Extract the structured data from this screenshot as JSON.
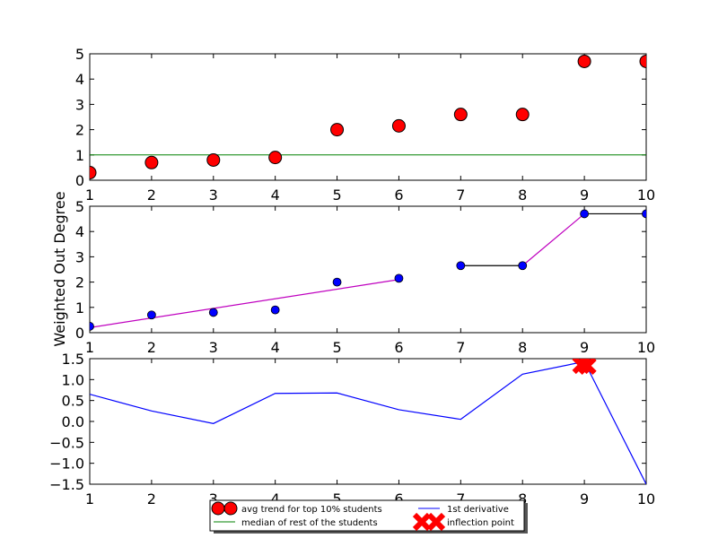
{
  "chart_data": {
    "type": "composite",
    "shared_ylabel": "Weighted Out Degree",
    "x_ticks": [
      "1",
      "2",
      "3",
      "4",
      "5",
      "6",
      "7",
      "8",
      "9",
      "10"
    ],
    "panels": [
      {
        "type": "scatter",
        "xlim": [
          1,
          10
        ],
        "ylim": [
          0,
          5
        ],
        "y_ticks": [
          "0",
          "1",
          "2",
          "3",
          "4",
          "5"
        ],
        "series": [
          {
            "name": "avg trend for top 10% students",
            "kind": "scatter",
            "color": "#ff0000",
            "x": [
              1,
              2,
              3,
              4,
              5,
              6,
              7,
              8,
              9,
              10
            ],
            "y": [
              0.3,
              0.7,
              0.8,
              0.9,
              2.0,
              2.15,
              2.6,
              2.6,
              4.7,
              4.7
            ]
          },
          {
            "name": "median of rest of the students",
            "kind": "hline",
            "color": "#008000",
            "y": 1.0
          }
        ]
      },
      {
        "type": "scatter_with_fits",
        "xlim": [
          1,
          10
        ],
        "ylim": [
          0,
          5
        ],
        "y_ticks": [
          "0",
          "1",
          "2",
          "3",
          "4",
          "5"
        ],
        "points": {
          "color": "#0000ff",
          "x": [
            1,
            2,
            3,
            4,
            5,
            6,
            7,
            8,
            9,
            10
          ],
          "y": [
            0.25,
            0.7,
            0.8,
            0.9,
            2.0,
            2.15,
            2.65,
            2.65,
            4.7,
            4.7
          ]
        },
        "segments": [
          {
            "color": "#bf00bf",
            "x": [
              1,
              6
            ],
            "y": [
              0.2,
              2.1
            ]
          },
          {
            "color": "#000000",
            "x": [
              7,
              8
            ],
            "y": [
              2.65,
              2.65
            ]
          },
          {
            "color": "#bf00bf",
            "x": [
              8,
              9
            ],
            "y": [
              2.65,
              4.7
            ]
          },
          {
            "color": "#000000",
            "x": [
              9,
              10
            ],
            "y": [
              4.7,
              4.7
            ]
          }
        ]
      },
      {
        "type": "line",
        "xlim": [
          1,
          10
        ],
        "ylim": [
          -1.5,
          1.5
        ],
        "y_ticks": [
          "−1.5",
          "−1.0",
          "−0.5",
          "0.0",
          "0.5",
          "1.0",
          "1.5"
        ],
        "series": [
          {
            "name": "1st derivative",
            "kind": "line",
            "color": "#0000ff",
            "x": [
              1,
              2,
              3,
              4,
              5,
              6,
              7,
              8,
              9,
              10
            ],
            "y": [
              0.65,
              0.25,
              -0.05,
              0.67,
              0.68,
              0.28,
              0.05,
              1.13,
              1.43,
              -1.5
            ]
          },
          {
            "name": "inflection point",
            "kind": "marker-x",
            "color": "#ff0000",
            "x": [
              8.95,
              9.05
            ],
            "y": [
              1.35,
              1.33
            ]
          }
        ]
      }
    ],
    "legend": {
      "placement": "bottom-center",
      "entries": [
        {
          "label": "avg trend for top 10% students",
          "marker": "circle",
          "color": "#ff0000"
        },
        {
          "label": "median of rest of the students",
          "marker": "line",
          "color": "#008000"
        },
        {
          "label": "1st derivative",
          "marker": "line",
          "color": "#0000ff"
        },
        {
          "label": "inflection point",
          "marker": "x",
          "color": "#ff0000"
        }
      ]
    }
  }
}
